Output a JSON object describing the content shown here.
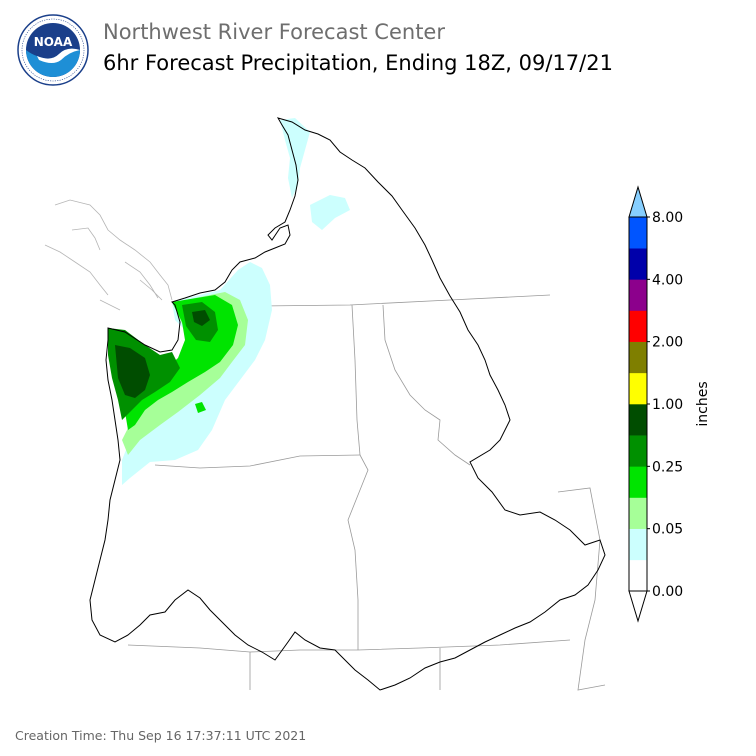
{
  "header": {
    "title": "Northwest River Forecast Center",
    "subtitle": "6hr Forecast Precipitation, Ending 18Z, 09/17/21"
  },
  "logo": {
    "text": "NOAA",
    "ring_text": "NATIONAL OCEANIC AND ATMOSPHERIC ADMINISTRATION · U.S. DEPARTMENT OF COMMERCE",
    "colors": {
      "top": "#1a3f8a",
      "bottom": "#1e8fd6",
      "ring": "#ffffff"
    }
  },
  "footer": {
    "creation_time": "Creation Time: Thu Sep 16 17:37:11 UTC 2021"
  },
  "colorbar": {
    "unit_label": "inches",
    "tick_labels": [
      "0.00",
      "0.05",
      "0.25",
      "1.00",
      "2.00",
      "4.00",
      "8.00"
    ],
    "bins": [
      {
        "color": "#ffffff"
      },
      {
        "color": "#ccfffe"
      },
      {
        "color": "#a6ff98"
      },
      {
        "color": "#00e400"
      },
      {
        "color": "#009000"
      },
      {
        "color": "#004d00"
      },
      {
        "color": "#ffff00"
      },
      {
        "color": "#7f7f00"
      },
      {
        "color": "#ff0000"
      },
      {
        "color": "#8c008c"
      },
      {
        "color": "#0000aa"
      },
      {
        "color": "#0055ff"
      }
    ],
    "over_color": "#87cfff",
    "under_color": "#ffffff"
  },
  "map": {
    "precip_colors": {
      "trace": "#ccfffe",
      "light": "#a6ff98",
      "moderate": "#00e400",
      "heavy": "#009000",
      "very_heavy": "#004d00"
    }
  }
}
